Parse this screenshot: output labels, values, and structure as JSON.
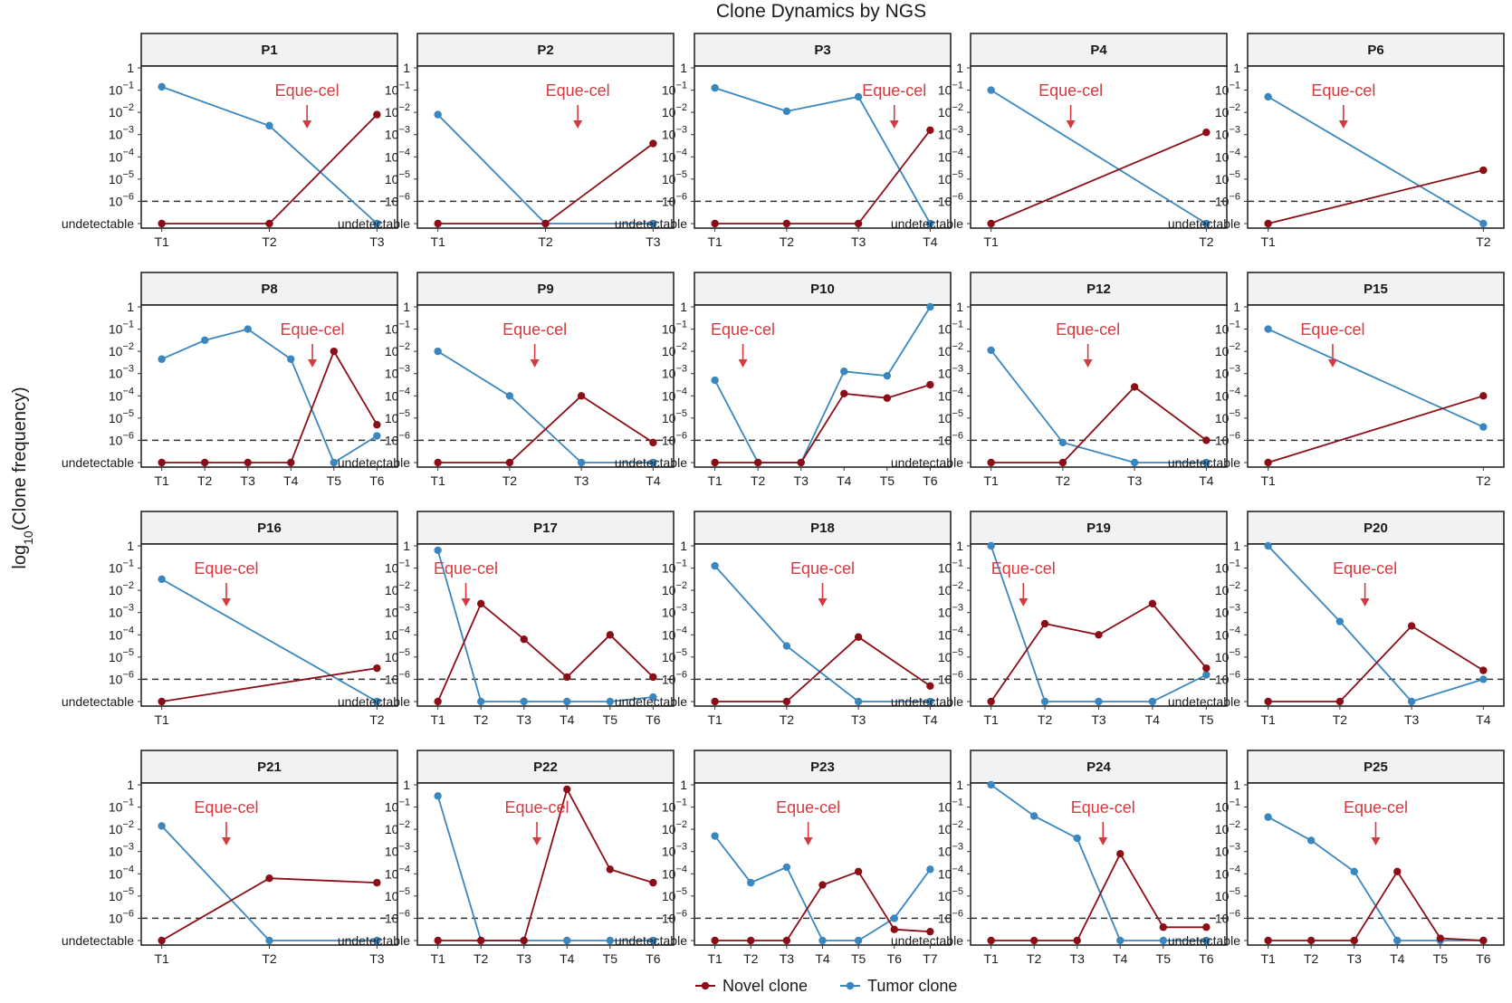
{
  "chart_data": {
    "type": "line",
    "title": "Clone Dynamics by NGS",
    "ylabel": "log10(Clone frequency)",
    "y_ticks": [
      "undetectable",
      "10^-6",
      "10^-5",
      "10^-4",
      "10^-3",
      "10^-2",
      "10^-1",
      "1"
    ],
    "undetectable_label": "undetectable",
    "detection_threshold_log10": -6,
    "ylim_log10": [
      -7,
      0
    ],
    "annotation_text": "Eque-cel",
    "colors": {
      "novel": "#8b0e17",
      "tumor": "#3a87bf",
      "annotation": "#d43a3f",
      "strip_bg": "#f2f2f2"
    },
    "legend": [
      {
        "name": "Novel clone",
        "color": "#8b0e17"
      },
      {
        "name": "Tumor clone",
        "color": "#3a87bf"
      }
    ],
    "panels": [
      {
        "label": "P1",
        "timepoints": [
          "T1",
          "T2",
          "T3"
        ],
        "eque_cel_after": 1.35,
        "series": [
          {
            "name": "Novel clone",
            "values": [
              -7,
              -7,
              -2.1
            ]
          },
          {
            "name": "Tumor clone",
            "values": [
              -0.85,
              -2.6,
              -7
            ]
          }
        ]
      },
      {
        "label": "P2",
        "timepoints": [
          "T1",
          "T2",
          "T3"
        ],
        "eque_cel_after": 1.3,
        "series": [
          {
            "name": "Novel clone",
            "values": [
              -7,
              -7,
              -3.4
            ]
          },
          {
            "name": "Tumor clone",
            "values": [
              -2.1,
              -7,
              -7
            ]
          }
        ]
      },
      {
        "label": "P3",
        "timepoints": [
          "T1",
          "T2",
          "T3",
          "T4"
        ],
        "eque_cel_after": 2.5,
        "series": [
          {
            "name": "Novel clone",
            "values": [
              -7,
              -7,
              -7,
              -2.8
            ]
          },
          {
            "name": "Tumor clone",
            "values": [
              -0.9,
              -1.95,
              -1.3,
              -7
            ]
          }
        ]
      },
      {
        "label": "P4",
        "timepoints": [
          "T1",
          "T2"
        ],
        "eque_cel_after": 0.37,
        "series": [
          {
            "name": "Novel clone",
            "values": [
              -7,
              -2.9
            ]
          },
          {
            "name": "Tumor clone",
            "values": [
              -1.0,
              -7
            ]
          }
        ]
      },
      {
        "label": "P6",
        "timepoints": [
          "T1",
          "T2"
        ],
        "eque_cel_after": 0.35,
        "series": [
          {
            "name": "Novel clone",
            "values": [
              -7,
              -4.6
            ]
          },
          {
            "name": "Tumor clone",
            "values": [
              -1.3,
              -7
            ]
          }
        ]
      },
      {
        "label": "P8",
        "timepoints": [
          "T1",
          "T2",
          "T3",
          "T4",
          "T5",
          "T6"
        ],
        "eque_cel_after": 3.5,
        "series": [
          {
            "name": "Novel clone",
            "values": [
              -7,
              -7,
              -7,
              -7,
              -2.0,
              -5.3
            ]
          },
          {
            "name": "Tumor clone",
            "values": [
              -2.35,
              -1.5,
              -1.0,
              -2.35,
              -7,
              -5.8
            ]
          }
        ]
      },
      {
        "label": "P9",
        "timepoints": [
          "T1",
          "T2",
          "T3",
          "T4"
        ],
        "eque_cel_after": 1.35,
        "series": [
          {
            "name": "Novel clone",
            "values": [
              -7,
              -7,
              -4.0,
              -6.1
            ]
          },
          {
            "name": "Tumor clone",
            "values": [
              -2.0,
              -4.0,
              -7,
              -7
            ]
          }
        ]
      },
      {
        "label": "P10",
        "timepoints": [
          "T1",
          "T2",
          "T3",
          "T4",
          "T5",
          "T6"
        ],
        "eque_cel_after": 0.65,
        "series": [
          {
            "name": "Novel clone",
            "values": [
              -7,
              -7,
              -7,
              -3.9,
              -4.1,
              -3.5
            ]
          },
          {
            "name": "Tumor clone",
            "values": [
              -3.3,
              -7,
              -7,
              -2.9,
              -3.1,
              0
            ]
          }
        ]
      },
      {
        "label": "P12",
        "timepoints": [
          "T1",
          "T2",
          "T3",
          "T4"
        ],
        "eque_cel_after": 1.35,
        "series": [
          {
            "name": "Novel clone",
            "values": [
              -7,
              -7,
              -3.6,
              -6.0
            ]
          },
          {
            "name": "Tumor clone",
            "values": [
              -1.95,
              -6.1,
              -7,
              -7
            ]
          }
        ]
      },
      {
        "label": "P15",
        "timepoints": [
          "T1",
          "T2"
        ],
        "eque_cel_after": 0.3,
        "series": [
          {
            "name": "Novel clone",
            "values": [
              -7,
              -4.0
            ]
          },
          {
            "name": "Tumor clone",
            "values": [
              -1.0,
              -5.4
            ]
          }
        ]
      },
      {
        "label": "P16",
        "timepoints": [
          "T1",
          "T2"
        ],
        "eque_cel_after": 0.3,
        "series": [
          {
            "name": "Novel clone",
            "values": [
              -7,
              -5.5
            ]
          },
          {
            "name": "Tumor clone",
            "values": [
              -1.5,
              -7
            ]
          }
        ]
      },
      {
        "label": "P17",
        "timepoints": [
          "T1",
          "T2",
          "T3",
          "T4",
          "T5",
          "T6"
        ],
        "eque_cel_after": 0.65,
        "series": [
          {
            "name": "Novel clone",
            "values": [
              -7,
              -2.6,
              -4.2,
              -5.9,
              -4.0,
              -5.9
            ]
          },
          {
            "name": "Tumor clone",
            "values": [
              -0.2,
              -7,
              -7,
              -7,
              -7,
              -6.8
            ]
          }
        ]
      },
      {
        "label": "P18",
        "timepoints": [
          "T1",
          "T2",
          "T3",
          "T4"
        ],
        "eque_cel_after": 1.5,
        "series": [
          {
            "name": "Novel clone",
            "values": [
              -7,
              -7,
              -4.1,
              -6.3
            ]
          },
          {
            "name": "Tumor clone",
            "values": [
              -0.9,
              -4.5,
              -7,
              -7
            ]
          }
        ]
      },
      {
        "label": "P19",
        "timepoints": [
          "T1",
          "T2",
          "T3",
          "T4",
          "T5"
        ],
        "eque_cel_after": 0.6,
        "series": [
          {
            "name": "Novel clone",
            "values": [
              -7,
              -3.5,
              -4.0,
              -2.6,
              -5.5
            ]
          },
          {
            "name": "Tumor clone",
            "values": [
              0,
              -7,
              -7,
              -7,
              -5.8
            ]
          }
        ]
      },
      {
        "label": "P20",
        "timepoints": [
          "T1",
          "T2",
          "T3",
          "T4"
        ],
        "eque_cel_after": 1.35,
        "series": [
          {
            "name": "Novel clone",
            "values": [
              -7,
              -7,
              -3.6,
              -5.6
            ]
          },
          {
            "name": "Tumor clone",
            "values": [
              0,
              -3.4,
              -7,
              -6.0
            ]
          }
        ]
      },
      {
        "label": "P21",
        "timepoints": [
          "T1",
          "T2",
          "T3"
        ],
        "eque_cel_after": 0.6,
        "series": [
          {
            "name": "Novel clone",
            "values": [
              -7,
              -4.2,
              -4.4
            ]
          },
          {
            "name": "Tumor clone",
            "values": [
              -1.85,
              -7,
              -7
            ]
          }
        ]
      },
      {
        "label": "P22",
        "timepoints": [
          "T1",
          "T2",
          "T3",
          "T4",
          "T5",
          "T6"
        ],
        "eque_cel_after": 2.3,
        "series": [
          {
            "name": "Novel clone",
            "values": [
              -7,
              -7,
              -7,
              -0.2,
              -3.8,
              -4.4
            ]
          },
          {
            "name": "Tumor clone",
            "values": [
              -0.5,
              -7,
              -7,
              -7,
              -7,
              -7
            ]
          }
        ]
      },
      {
        "label": "P23",
        "timepoints": [
          "T1",
          "T2",
          "T3",
          "T4",
          "T5",
          "T6",
          "T7"
        ],
        "eque_cel_after": 2.6,
        "series": [
          {
            "name": "Novel clone",
            "values": [
              -7,
              -7,
              -7,
              -4.5,
              -3.9,
              -6.5,
              -6.6
            ]
          },
          {
            "name": "Tumor clone",
            "values": [
              -2.3,
              -4.4,
              -3.7,
              -7,
              -7,
              -6.0,
              -3.8
            ]
          }
        ]
      },
      {
        "label": "P24",
        "timepoints": [
          "T1",
          "T2",
          "T3",
          "T4",
          "T5",
          "T6"
        ],
        "eque_cel_after": 2.6,
        "series": [
          {
            "name": "Novel clone",
            "values": [
              -7,
              -7,
              -7,
              -3.1,
              -6.4,
              -6.4
            ]
          },
          {
            "name": "Tumor clone",
            "values": [
              0,
              -1.4,
              -2.4,
              -7,
              -7,
              -7
            ]
          }
        ]
      },
      {
        "label": "P25",
        "timepoints": [
          "T1",
          "T2",
          "T3",
          "T4",
          "T5",
          "T6"
        ],
        "eque_cel_after": 2.5,
        "series": [
          {
            "name": "Novel clone",
            "values": [
              -7,
              -7,
              -7,
              -3.9,
              -6.9,
              -7
            ]
          },
          {
            "name": "Tumor clone",
            "values": [
              -1.45,
              -2.5,
              -3.9,
              -7,
              -7,
              -7
            ]
          }
        ]
      }
    ]
  }
}
